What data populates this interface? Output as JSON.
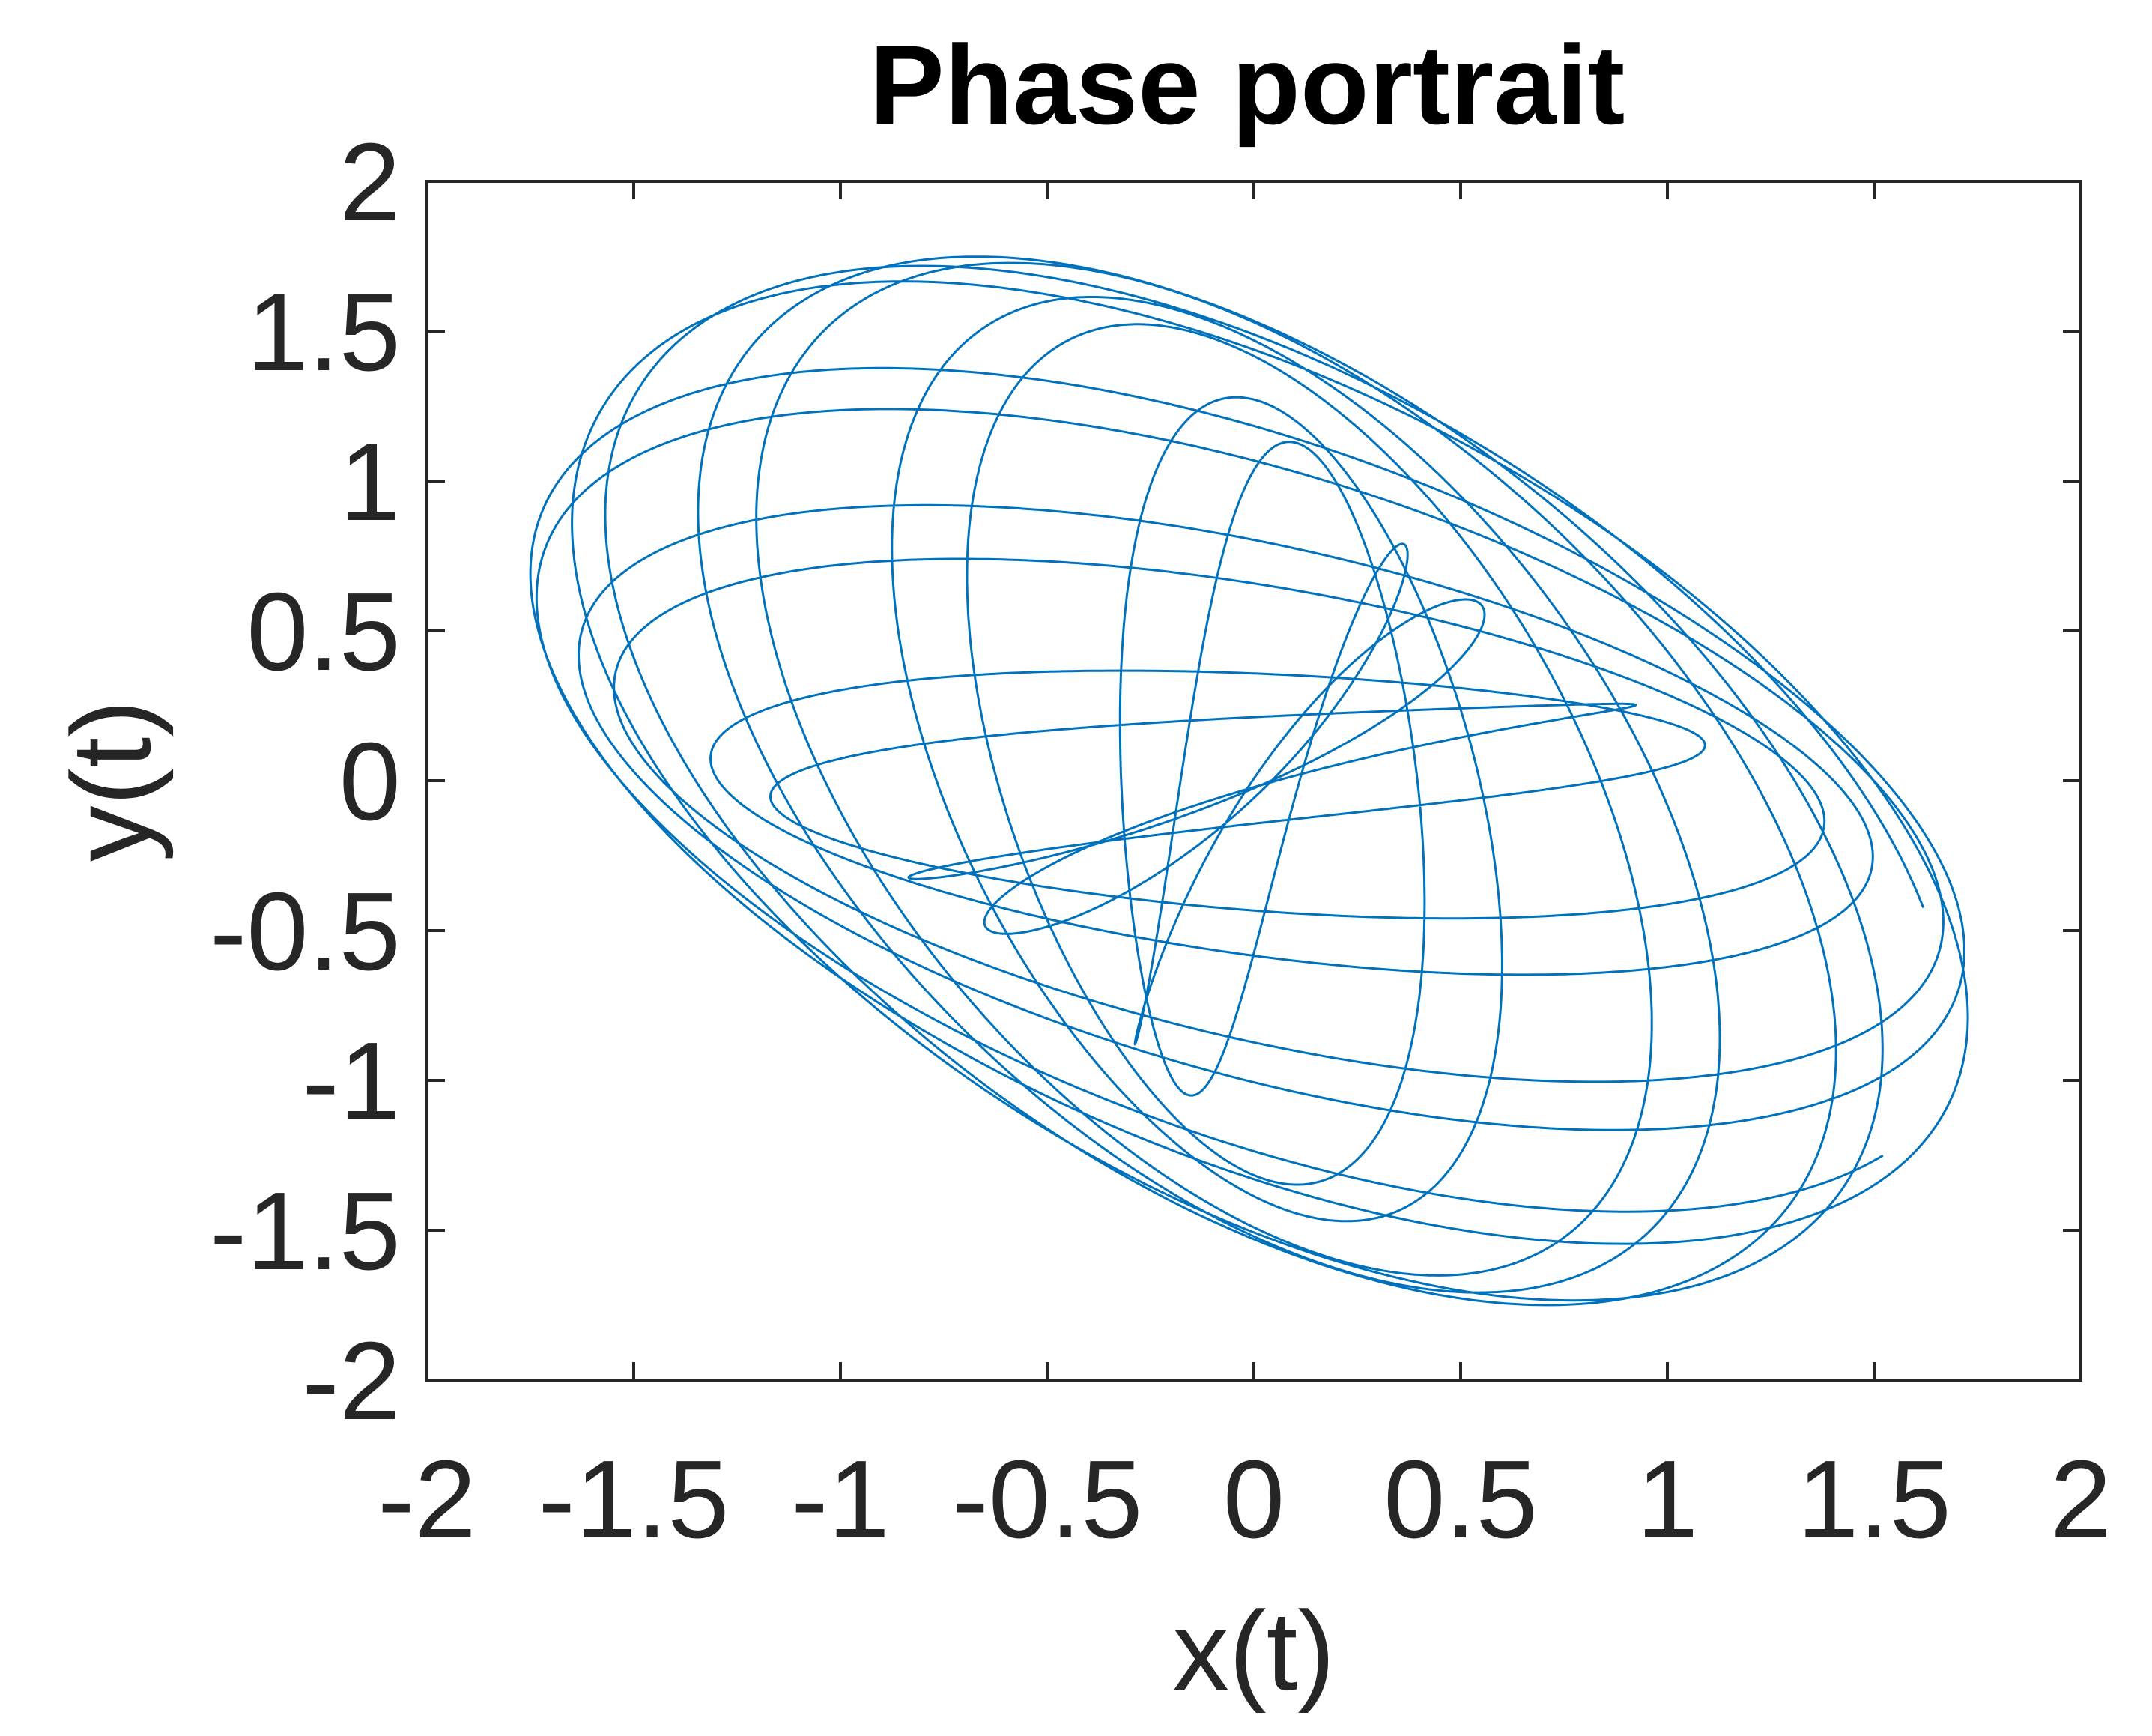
{
  "chart_data": {
    "type": "line",
    "title": "Phase portrait",
    "xlabel": "x(t)",
    "ylabel": "y(t)",
    "xlim": [
      -2,
      2
    ],
    "ylim": [
      -2,
      2
    ],
    "xticks": [
      "-2",
      "-1.5",
      "-1",
      "-0.5",
      "0",
      "0.5",
      "1",
      "1.5",
      "2"
    ],
    "yticks": [
      "2",
      "1.5",
      "1",
      "0.5",
      "0",
      "-0.5",
      "-1",
      "-1.5",
      "-2"
    ],
    "grid": false,
    "box": true,
    "series": [
      {
        "color": "#0072BD",
        "curve": "x(t) = cos(t) + 0.75·cos(1.12·t + 0.6), y(t) = sin(t) + 0.75·sin(1.12·t − 0.6)",
        "t_range": [
          0,
          100
        ]
      }
    ]
  }
}
